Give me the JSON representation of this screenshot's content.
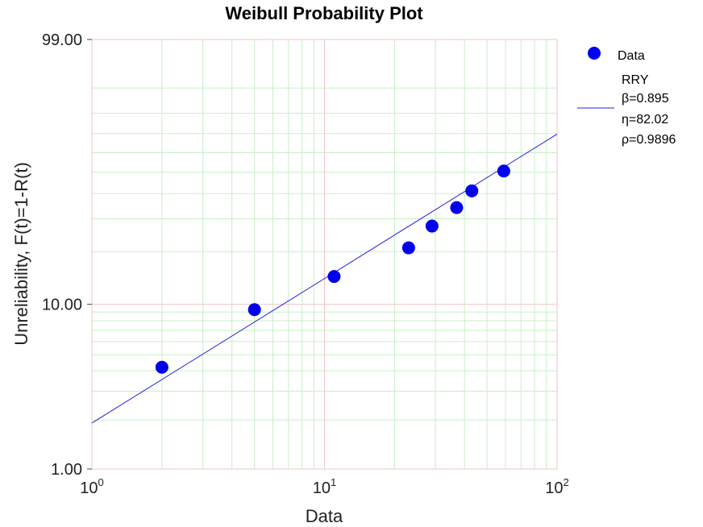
{
  "chart_data": {
    "type": "scatter",
    "title": "Weibull Probability Plot",
    "xlabel": "Data",
    "ylabel": "Unreliability, F(t)=1-R(t)",
    "x_scale": "log",
    "y_scale": "weibull",
    "xlim": [
      1,
      100
    ],
    "ylim": [
      1,
      99
    ],
    "grid": true,
    "x_ticks": [
      {
        "value": 1,
        "base": "10",
        "exp": "0"
      },
      {
        "value": 10,
        "base": "10",
        "exp": "1"
      },
      {
        "value": 100,
        "base": "10",
        "exp": "2"
      }
    ],
    "y_ticks": [
      {
        "value": 1,
        "label": "1.00"
      },
      {
        "value": 10,
        "label": "10.00"
      },
      {
        "value": 99,
        "label": "99.00"
      }
    ],
    "series": [
      {
        "name": "Data",
        "kind": "points",
        "color": "#0000ee",
        "points": [
          {
            "x": 2,
            "y": 4.2
          },
          {
            "x": 5,
            "y": 9.3
          },
          {
            "x": 11,
            "y": 14.5
          },
          {
            "x": 23,
            "y": 21.0
          },
          {
            "x": 29,
            "y": 27.5
          },
          {
            "x": 37,
            "y": 34.2
          },
          {
            "x": 43,
            "y": 41.2
          },
          {
            "x": 59,
            "y": 50.6
          }
        ]
      },
      {
        "name": "RRY",
        "kind": "fit",
        "color": "#2222dd",
        "beta": 0.895,
        "eta": 82.02
      }
    ],
    "legend": {
      "position": "right",
      "entries": [
        "Data",
        "RRY",
        "β=0.895",
        "η=82.02",
        "ρ=0.9896"
      ]
    }
  }
}
